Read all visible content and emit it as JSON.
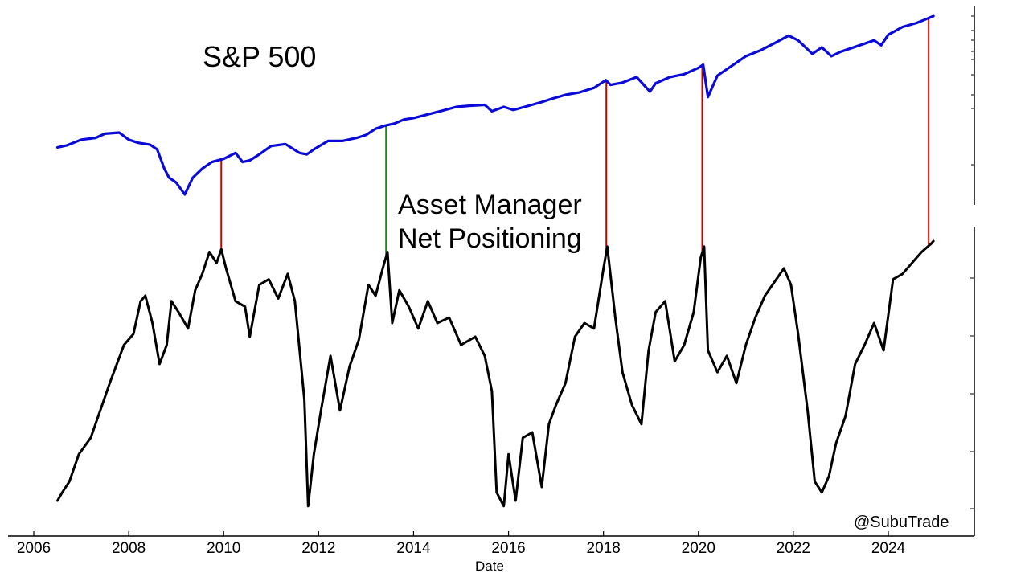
{
  "chart_data": [
    {
      "type": "line",
      "title": "S&P 500",
      "scale": "log",
      "color": "#0a0ad8",
      "x": [
        2006.5,
        2006.7,
        2007.0,
        2007.3,
        2007.5,
        2007.8,
        2008.0,
        2008.2,
        2008.45,
        2008.6,
        2008.75,
        2008.85,
        2009.0,
        2009.18,
        2009.35,
        2009.55,
        2009.75,
        2010.0,
        2010.25,
        2010.4,
        2010.55,
        2010.75,
        2011.0,
        2011.3,
        2011.6,
        2011.75,
        2011.9,
        2012.2,
        2012.5,
        2012.8,
        2013.0,
        2013.2,
        2013.4,
        2013.6,
        2013.8,
        2014.0,
        2014.3,
        2014.6,
        2014.9,
        2015.2,
        2015.5,
        2015.65,
        2015.9,
        2016.1,
        2016.4,
        2016.7,
        2016.9,
        2017.2,
        2017.5,
        2017.8,
        2018.05,
        2018.15,
        2018.4,
        2018.7,
        2018.98,
        2019.1,
        2019.4,
        2019.7,
        2020.0,
        2020.1,
        2020.2,
        2020.4,
        2020.7,
        2021.0,
        2021.3,
        2021.6,
        2021.9,
        2022.1,
        2022.4,
        2022.6,
        2022.8,
        2023.0,
        2023.4,
        2023.7,
        2023.85,
        2024.0,
        2024.3,
        2024.6,
        2024.8,
        2024.95
      ],
      "y": [
        1280,
        1310,
        1400,
        1430,
        1500,
        1520,
        1400,
        1350,
        1320,
        1250,
        1000,
        900,
        850,
        740,
        900,
        1000,
        1080,
        1120,
        1200,
        1080,
        1100,
        1180,
        1300,
        1330,
        1200,
        1180,
        1250,
        1380,
        1380,
        1430,
        1480,
        1590,
        1650,
        1690,
        1770,
        1800,
        1880,
        1960,
        2050,
        2080,
        2100,
        1950,
        2050,
        1980,
        2070,
        2170,
        2250,
        2360,
        2430,
        2560,
        2800,
        2650,
        2720,
        2900,
        2450,
        2700,
        2900,
        3000,
        3230,
        3350,
        2300,
        2950,
        3300,
        3700,
        3950,
        4300,
        4700,
        4450,
        3800,
        4100,
        3700,
        3900,
        4200,
        4450,
        4200,
        4750,
        5200,
        5450,
        5700,
        5900
      ]
    },
    {
      "type": "line",
      "title": "Asset Manager Net Positioning",
      "color": "#000000",
      "xlabel": "Date",
      "xticks": [
        "2006",
        "2008",
        "2010",
        "2012",
        "2014",
        "2016",
        "2018",
        "2020",
        "2022",
        "2024"
      ],
      "xlim": [
        2006,
        2025.6
      ],
      "ylim": [
        0,
        100
      ],
      "x": [
        2006.5,
        2006.6,
        2006.75,
        2006.95,
        2007.2,
        2007.4,
        2007.6,
        2007.9,
        2008.1,
        2008.25,
        2008.35,
        2008.5,
        2008.65,
        2008.8,
        2008.9,
        2009.05,
        2009.25,
        2009.4,
        2009.55,
        2009.7,
        2009.85,
        2009.95,
        2010.05,
        2010.25,
        2010.45,
        2010.55,
        2010.75,
        2010.95,
        2011.15,
        2011.35,
        2011.5,
        2011.7,
        2011.78,
        2011.9,
        2012.05,
        2012.25,
        2012.45,
        2012.65,
        2012.85,
        2013.05,
        2013.2,
        2013.35,
        2013.45,
        2013.55,
        2013.7,
        2013.9,
        2014.1,
        2014.3,
        2014.5,
        2014.75,
        2015.0,
        2015.3,
        2015.5,
        2015.65,
        2015.75,
        2015.9,
        2016.0,
        2016.15,
        2016.3,
        2016.5,
        2016.7,
        2016.85,
        2017.0,
        2017.2,
        2017.4,
        2017.6,
        2017.8,
        2018.0,
        2018.08,
        2018.25,
        2018.4,
        2018.6,
        2018.8,
        2018.95,
        2019.1,
        2019.3,
        2019.5,
        2019.7,
        2019.9,
        2020.05,
        2020.12,
        2020.2,
        2020.4,
        2020.6,
        2020.8,
        2021.0,
        2021.2,
        2021.4,
        2021.6,
        2021.8,
        2021.95,
        2022.1,
        2022.3,
        2022.45,
        2022.6,
        2022.75,
        2022.9,
        2023.1,
        2023.3,
        2023.5,
        2023.7,
        2023.9,
        2024.1,
        2024.3,
        2024.5,
        2024.7,
        2024.9,
        2024.95
      ],
      "y": [
        5,
        8,
        12,
        22,
        28,
        38,
        48,
        62,
        66,
        78,
        80,
        70,
        55,
        62,
        78,
        74,
        68,
        82,
        88,
        96,
        92,
        97,
        90,
        78,
        76,
        65,
        84,
        86,
        79,
        88,
        78,
        42,
        3,
        22,
        38,
        58,
        38,
        54,
        64,
        84,
        80,
        90,
        96,
        70,
        82,
        76,
        68,
        78,
        70,
        72,
        62,
        65,
        58,
        45,
        8,
        3,
        22,
        5,
        28,
        30,
        10,
        33,
        40,
        48,
        65,
        70,
        68,
        90,
        98,
        72,
        52,
        40,
        33,
        60,
        74,
        78,
        56,
        62,
        74,
        94,
        98,
        60,
        52,
        58,
        48,
        62,
        72,
        80,
        85,
        90,
        84,
        66,
        38,
        12,
        8,
        14,
        26,
        36,
        55,
        62,
        70,
        60,
        86,
        88,
        92,
        96,
        99,
        100
      ]
    }
  ],
  "labels": {
    "top": "S&P 500",
    "bottom_line1": "Asset Manager",
    "bottom_line2": "Net Positioning",
    "credit": "@SubuTrade",
    "xlabel": "Date"
  },
  "markers": [
    {
      "x": 2009.95,
      "color": "#c80000"
    },
    {
      "x": 2013.42,
      "color": "#1a8a1a"
    },
    {
      "x": 2018.06,
      "color": "#c80000"
    },
    {
      "x": 2020.08,
      "color": "#c80000"
    },
    {
      "x": 2024.85,
      "color": "#c80000"
    }
  ]
}
